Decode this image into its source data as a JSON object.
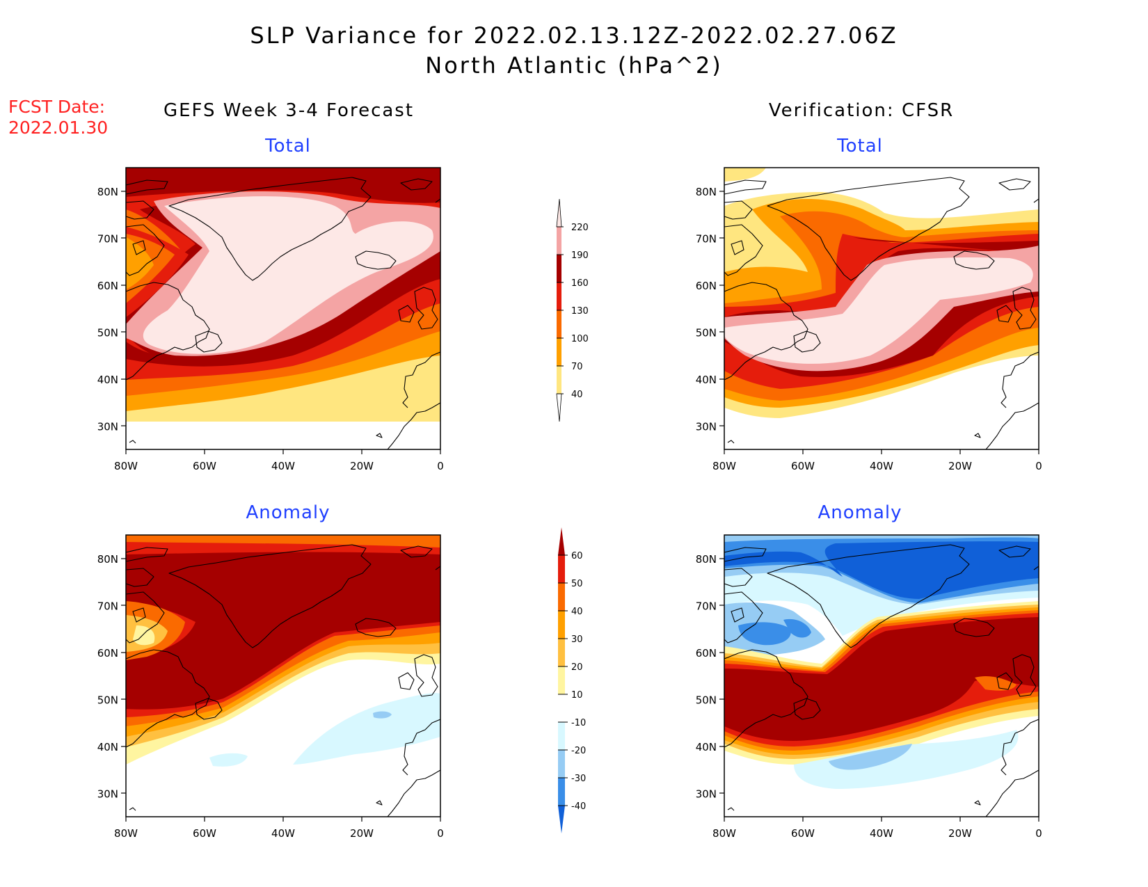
{
  "title": {
    "line1": "SLP Variance for 2022.02.13.12Z-2022.02.27.06Z",
    "line2": "North Atlantic (hPa^2)"
  },
  "fcst_date": {
    "label": "FCST Date:",
    "value": "2022.01.30"
  },
  "columns": {
    "left": "GEFS Week 3-4 Forecast",
    "right": "Verification: CFSR"
  },
  "panels": [
    {
      "id": "gefs-total",
      "subtitle": "Total"
    },
    {
      "id": "cfsr-total",
      "subtitle": "Total"
    },
    {
      "id": "gefs-anomaly",
      "subtitle": "Anomaly"
    },
    {
      "id": "cfsr-anomaly",
      "subtitle": "Anomaly"
    }
  ],
  "axes": {
    "lon_ticks": [
      "80W",
      "60W",
      "40W",
      "20W",
      "0"
    ],
    "lat_ticks": [
      "80N",
      "70N",
      "60N",
      "50N",
      "40N",
      "30N"
    ],
    "lon_range": [
      -80,
      0
    ],
    "lat_range": [
      25,
      85
    ]
  },
  "colorbars": {
    "total": {
      "labels": [
        "220",
        "190",
        "160",
        "130",
        "100",
        "70",
        "40"
      ],
      "colors": [
        "#fde8e6",
        "#f4a4a4",
        "#a50000",
        "#e51d0c",
        "#fa6a00",
        "#ffa000",
        "#ffe680"
      ]
    },
    "anomaly": {
      "labels": [
        "60",
        "50",
        "40",
        "30",
        "20",
        "10",
        "-10",
        "-20",
        "-30",
        "-40"
      ],
      "colors": [
        "#a50000",
        "#e51d0c",
        "#fa6a00",
        "#ffa000",
        "#ffc040",
        "#fff5a0",
        "#ffffff",
        "#d8f8ff",
        "#96ccf4",
        "#3a8ee8",
        "#1060d8"
      ]
    }
  }
}
